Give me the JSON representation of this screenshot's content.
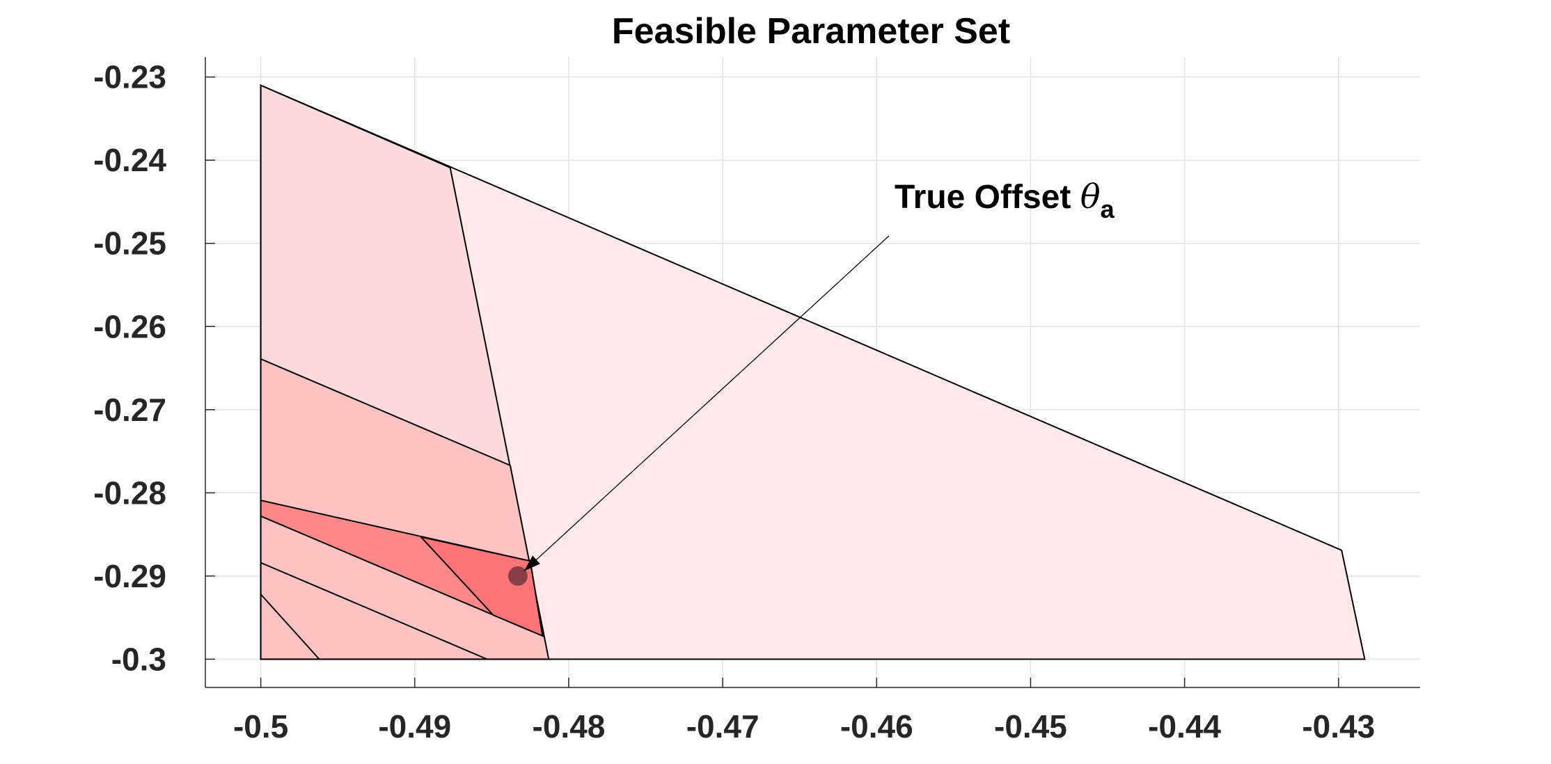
{
  "chart_data": {
    "type": "area",
    "title": "Feasible Parameter Set",
    "xlabel": "",
    "ylabel": "",
    "xlim": [
      -0.5036,
      -0.4247
    ],
    "ylim": [
      -0.3034,
      -0.2276
    ],
    "x_ticks": [
      -0.5,
      -0.49,
      -0.48,
      -0.47,
      -0.46,
      -0.45,
      -0.44,
      -0.43
    ],
    "x_tick_labels": [
      "-0.5",
      "-0.49",
      "-0.48",
      "-0.47",
      "-0.46",
      "-0.45",
      "-0.44",
      "-0.43"
    ],
    "y_ticks": [
      -0.23,
      -0.24,
      -0.25,
      -0.26,
      -0.27,
      -0.28,
      -0.29,
      -0.3
    ],
    "y_tick_labels": [
      "-0.23",
      "-0.24",
      "-0.25",
      "-0.26",
      "-0.27",
      "-0.28",
      "-0.29",
      "-0.3"
    ],
    "grid": true,
    "regions": [
      {
        "fill": "#fde9ea",
        "vertices": [
          [
            -0.5,
            -0.231
          ],
          [
            -0.5,
            -0.3
          ],
          [
            -0.4283,
            -0.3
          ],
          [
            -0.4298,
            -0.2869
          ]
        ]
      },
      {
        "fill": "#fddadb",
        "vertices": [
          [
            -0.5,
            -0.231
          ],
          [
            -0.4877,
            -0.2409
          ],
          [
            -0.4813,
            -0.3
          ],
          [
            -0.5,
            -0.3
          ]
        ]
      },
      {
        "fill": "#fcc3c3",
        "vertices": [
          [
            -0.5,
            -0.2639
          ],
          [
            -0.4838,
            -0.2767
          ],
          [
            -0.4813,
            -0.3
          ],
          [
            -0.5,
            -0.3
          ]
        ]
      },
      {
        "fill": "#ff8888",
        "vertices": [
          [
            -0.5,
            -0.2809
          ],
          [
            -0.4825,
            -0.2882
          ],
          [
            -0.4817,
            -0.2972
          ],
          [
            -0.5,
            -0.2828
          ]
        ]
      },
      {
        "fill": "#ff7577",
        "vertices": [
          [
            -0.4896,
            -0.2853
          ],
          [
            -0.4825,
            -0.2882
          ],
          [
            -0.4817,
            -0.2972
          ],
          [
            -0.4849,
            -0.2947
          ]
        ]
      }
    ],
    "segments": [
      [
        [
          -0.5,
          -0.2884
        ],
        [
          -0.4853,
          -0.3
        ]
      ],
      [
        [
          -0.5,
          -0.2922
        ],
        [
          -0.4962,
          -0.3
        ]
      ]
    ],
    "points": [
      {
        "x": -0.4833,
        "y": -0.29,
        "color": "#7a3a3f"
      }
    ],
    "annotation": {
      "text": "True Offset ",
      "symbol": "θ",
      "subscript": "a",
      "arrow_from": [
        -0.4592,
        -0.2491
      ],
      "arrow_to": [
        -0.4829,
        -0.2894
      ]
    },
    "colors": {
      "axis": "#262626",
      "grid": "#e3e3e3",
      "edge": "#000000"
    }
  }
}
